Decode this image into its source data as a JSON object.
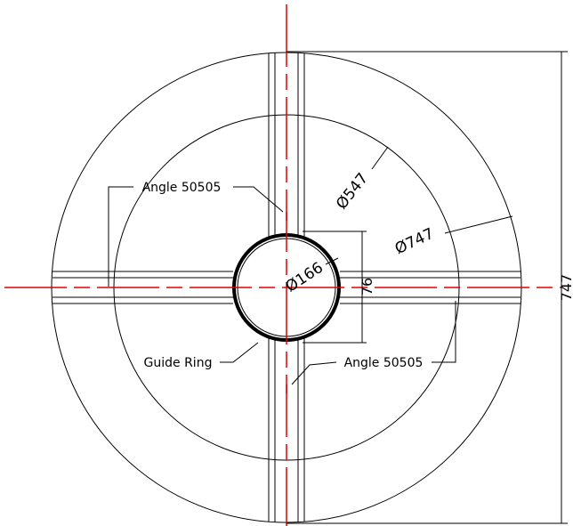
{
  "labels": {
    "angle_top": "Angle 50505",
    "angle_bottom": "Angle 50505",
    "guide_ring": "Guide Ring"
  },
  "dimensions": {
    "outer_diameter": "Ø747",
    "inner_diameter": "Ø547",
    "ring_diameter": "Ø166",
    "ring_height": "76",
    "overall": "747"
  }
}
